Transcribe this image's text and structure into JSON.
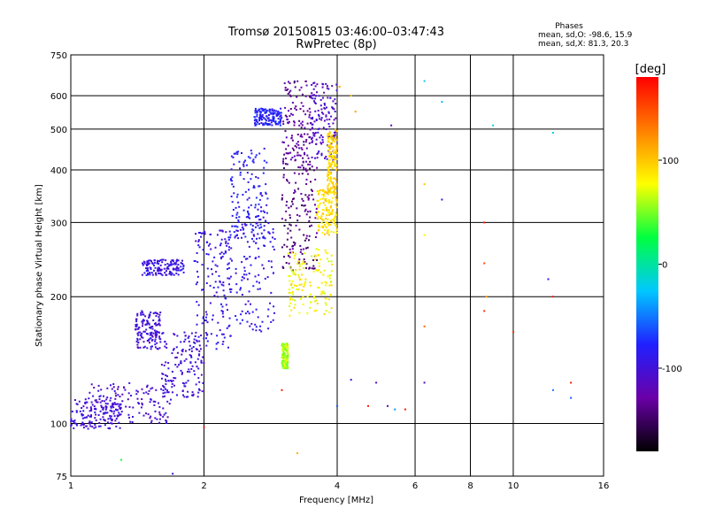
{
  "chart_data": {
    "type": "scatter",
    "title_line1": "Tromsø 20150815 03:46:00–03:47:43",
    "title_line2": "RwPretec (8p)",
    "xlabel": "Frequency [MHz]",
    "ylabel": "Stationary phase Virtual Height [km]",
    "x_scale": "log",
    "y_scale": "log",
    "xlim": [
      1,
      16
    ],
    "ylim": [
      75,
      750
    ],
    "x_ticks": [
      1,
      2,
      4,
      6,
      8,
      10,
      16
    ],
    "y_ticks": [
      75,
      100,
      200,
      300,
      400,
      500,
      600,
      750
    ],
    "grid": true,
    "phases": {
      "heading": "Phases",
      "o_stats": "mean, sd,O: -98.6, 15.9",
      "x_stats": "mean, sd,X:  81.3, 20.3"
    },
    "colorbar": {
      "label": "[deg]",
      "range": [
        -180,
        180
      ],
      "ticks": [
        100,
        0,
        -100
      ],
      "colors": [
        "#000000",
        "#6a00a8",
        "#2020ff",
        "#00c8ff",
        "#00ff40",
        "#ffff00",
        "#ff8000",
        "#ff0000"
      ]
    },
    "series": [
      {
        "clusters": [
          {
            "f": [
              1.0,
              1.3
            ],
            "h": [
              97,
              115
            ],
            "phase": -100
          },
          {
            "f": [
              1.1,
              1.7
            ],
            "h": [
              100,
              125
            ],
            "phase": -105
          },
          {
            "f": [
              1.4,
              1.6
            ],
            "h": [
              150,
              185
            ],
            "phase": -100
          },
          {
            "f": [
              1.45,
              1.8
            ],
            "h": [
              225,
              245
            ],
            "phase": -95
          },
          {
            "f": [
              1.6,
              2.0
            ],
            "h": [
              115,
              165
            ],
            "phase": -100
          },
          {
            "f": [
              1.9,
              2.3
            ],
            "h": [
              150,
              290
            ],
            "phase": -95
          },
          {
            "f": [
              2.2,
              2.9
            ],
            "h": [
              165,
              300
            ],
            "phase": -90
          },
          {
            "f": [
              2.3,
              2.8
            ],
            "h": [
              270,
              450
            ],
            "phase": -85
          },
          {
            "f": [
              3.0,
              3.5
            ],
            "h": [
              400,
              650
            ],
            "phase": -130
          },
          {
            "f": [
              3.0,
              3.6
            ],
            "h": [
              230,
              420
            ],
            "phase": -140
          },
          {
            "f": [
              2.6,
              3.0
            ],
            "h": [
              510,
              560
            ],
            "phase": -80
          },
          {
            "f": [
              3.5,
              4.0
            ],
            "h": [
              420,
              650
            ],
            "phase": -110
          }
        ]
      },
      {
        "clusters": [
          {
            "f": [
              3.1,
              3.9
            ],
            "h": [
              180,
              260
            ],
            "phase": 80
          },
          {
            "f": [
              3.6,
              4.0
            ],
            "h": [
              280,
              360
            ],
            "phase": 90
          },
          {
            "f": [
              3.0,
              3.1
            ],
            "h": [
              135,
              155
            ],
            "phase": 60
          },
          {
            "f": [
              3.8,
              4.0
            ],
            "h": [
              350,
              500
            ],
            "phase": 95
          }
        ]
      },
      {
        "points": [
          {
            "f": 4.05,
            "h": 630,
            "phase": 110
          },
          {
            "f": 4.3,
            "h": 600,
            "phase": 105
          },
          {
            "f": 4.4,
            "h": 550,
            "phase": 115
          },
          {
            "f": 5.3,
            "h": 510,
            "phase": -120
          },
          {
            "f": 6.3,
            "h": 650,
            "phase": -20
          },
          {
            "f": 6.9,
            "h": 580,
            "phase": -30
          },
          {
            "f": 9.0,
            "h": 510,
            "phase": -20
          },
          {
            "f": 12.3,
            "h": 490,
            "phase": -20
          },
          {
            "f": 6.3,
            "h": 370,
            "phase": 100
          },
          {
            "f": 6.9,
            "h": 340,
            "phase": -100
          },
          {
            "f": 8.6,
            "h": 300,
            "phase": 170
          },
          {
            "f": 6.3,
            "h": 280,
            "phase": 80
          },
          {
            "f": 8.6,
            "h": 240,
            "phase": 150
          },
          {
            "f": 12.0,
            "h": 220,
            "phase": -90
          },
          {
            "f": 12.3,
            "h": 200,
            "phase": 170
          },
          {
            "f": 8.7,
            "h": 200,
            "phase": 120
          },
          {
            "f": 8.6,
            "h": 185,
            "phase": 160
          },
          {
            "f": 6.3,
            "h": 170,
            "phase": 140
          },
          {
            "f": 10.0,
            "h": 165,
            "phase": 160
          },
          {
            "f": 6.3,
            "h": 125,
            "phase": -110
          },
          {
            "f": 13.5,
            "h": 125,
            "phase": 170
          },
          {
            "f": 4.3,
            "h": 127,
            "phase": -100
          },
          {
            "f": 4.9,
            "h": 125,
            "phase": -110
          },
          {
            "f": 12.3,
            "h": 120,
            "phase": -50
          },
          {
            "f": 13.5,
            "h": 115,
            "phase": -60
          },
          {
            "f": 4.7,
            "h": 110,
            "phase": 170
          },
          {
            "f": 5.2,
            "h": 110,
            "phase": -110
          },
          {
            "f": 5.4,
            "h": 108,
            "phase": -40
          },
          {
            "f": 5.7,
            "h": 108,
            "phase": 170
          },
          {
            "f": 4.0,
            "h": 110,
            "phase": -60
          },
          {
            "f": 2.0,
            "h": 98,
            "phase": 170
          },
          {
            "f": 3.0,
            "h": 120,
            "phase": 170
          },
          {
            "f": 3.25,
            "h": 85,
            "phase": 110
          },
          {
            "f": 1.3,
            "h": 82,
            "phase": 30
          },
          {
            "f": 1.7,
            "h": 76,
            "phase": -100
          }
        ]
      }
    ]
  }
}
